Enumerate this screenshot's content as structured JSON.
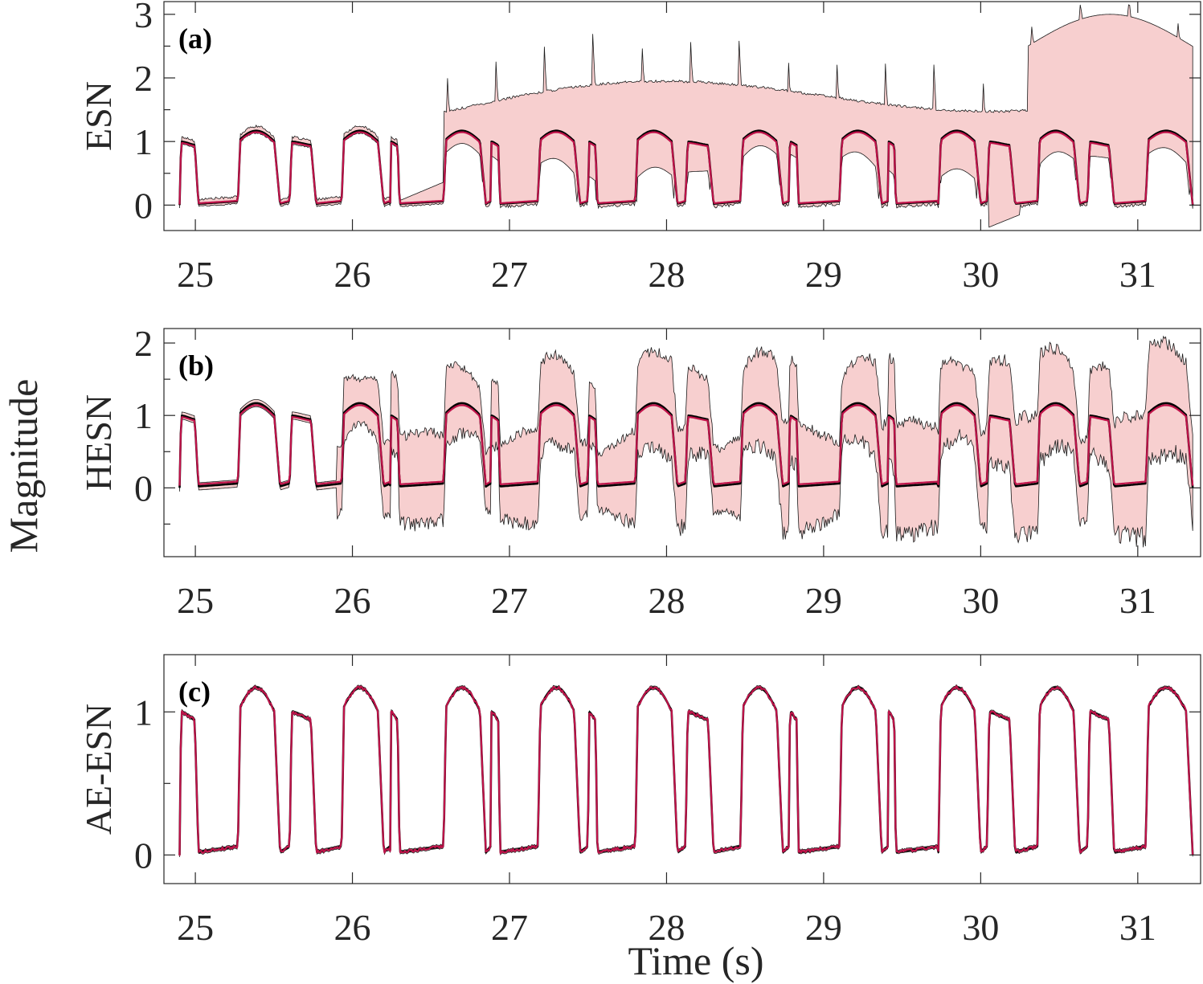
{
  "figure": {
    "xlabel": "Time (s)",
    "ylabel": "Magnitude"
  },
  "colors": {
    "truth": "#000000",
    "prediction": "#c0134a",
    "band_fill": "#f7cfcf",
    "band_edge": "#1a1a1a"
  },
  "chart_data": [
    {
      "type": "line",
      "panel": "(a)",
      "ylabel": "ESN",
      "xlim": [
        24.8,
        31.4
      ],
      "ylim": [
        -0.4,
        3.2
      ],
      "xticks": [
        25,
        26,
        27,
        28,
        29,
        30,
        31
      ],
      "yticks": [
        0,
        1,
        2,
        3
      ],
      "grid": false,
      "series": [
        {
          "role": "truth",
          "description": "square-wave like signal between ~0 and ~1.15"
        },
        {
          "role": "prediction",
          "description": "closely tracks truth"
        },
        {
          "role": "uncertainty band",
          "upper_approx": "up to ~3.2 after t=26.6",
          "lower_approx": "down to ~-0.4 near t=30.1"
        }
      ]
    },
    {
      "type": "line",
      "panel": "(b)",
      "ylabel": "HESN",
      "xlim": [
        24.8,
        31.4
      ],
      "ylim": [
        -0.95,
        2.2
      ],
      "xticks": [
        25,
        26,
        27,
        28,
        29,
        30,
        31
      ],
      "yticks": [
        0,
        1,
        2
      ],
      "grid": false,
      "series": [
        {
          "role": "truth"
        },
        {
          "role": "prediction"
        },
        {
          "role": "uncertainty band",
          "upper_approx": "up to ~2.2",
          "lower_approx": "down to ~-0.95"
        }
      ]
    },
    {
      "type": "line",
      "panel": "(c)",
      "ylabel": "AE-ESN",
      "xlim": [
        24.8,
        31.4
      ],
      "ylim": [
        -0.2,
        1.4
      ],
      "xticks": [
        25,
        26,
        27,
        28,
        29,
        30,
        31
      ],
      "yticks": [
        0,
        1
      ],
      "grid": false,
      "series": [
        {
          "role": "truth"
        },
        {
          "role": "prediction"
        },
        {
          "role": "uncertainty band",
          "upper_approx": "very narrow",
          "lower_approx": "very narrow"
        }
      ]
    }
  ],
  "signal_segments": [
    {
      "kind": "short",
      "start": 24.9,
      "end": 25.02
    },
    {
      "kind": "gap",
      "start": 25.02,
      "end": 25.27
    },
    {
      "kind": "long",
      "start": 25.27,
      "end": 25.54
    },
    {
      "kind": "gap",
      "start": 25.54,
      "end": 25.6
    },
    {
      "kind": "short",
      "start": 25.6,
      "end": 25.77
    },
    {
      "kind": "gap",
      "start": 25.77,
      "end": 25.93
    },
    {
      "kind": "long",
      "start": 25.93,
      "end": 26.2
    },
    {
      "kind": "gap",
      "start": 26.2,
      "end": 26.24
    },
    {
      "kind": "short",
      "start": 26.24,
      "end": 26.3
    },
    {
      "kind": "gap",
      "start": 26.3,
      "end": 26.58
    },
    {
      "kind": "long",
      "start": 26.58,
      "end": 26.85
    },
    {
      "kind": "gap",
      "start": 26.85,
      "end": 26.88
    },
    {
      "kind": "short",
      "start": 26.88,
      "end": 26.94
    },
    {
      "kind": "gap",
      "start": 26.94,
      "end": 27.18
    },
    {
      "kind": "long",
      "start": 27.18,
      "end": 27.45
    },
    {
      "kind": "gap",
      "start": 27.45,
      "end": 27.5
    },
    {
      "kind": "short",
      "start": 27.5,
      "end": 27.56
    },
    {
      "kind": "gap",
      "start": 27.56,
      "end": 27.8
    },
    {
      "kind": "long",
      "start": 27.8,
      "end": 28.07
    },
    {
      "kind": "gap",
      "start": 28.07,
      "end": 28.12
    },
    {
      "kind": "short",
      "start": 28.12,
      "end": 28.3
    },
    {
      "kind": "gap",
      "start": 28.3,
      "end": 28.47
    },
    {
      "kind": "long",
      "start": 28.47,
      "end": 28.74
    },
    {
      "kind": "gap",
      "start": 28.74,
      "end": 28.78
    },
    {
      "kind": "short",
      "start": 28.78,
      "end": 28.84
    },
    {
      "kind": "gap",
      "start": 28.84,
      "end": 29.1
    },
    {
      "kind": "long",
      "start": 29.1,
      "end": 29.37
    },
    {
      "kind": "gap",
      "start": 29.37,
      "end": 29.41
    },
    {
      "kind": "short",
      "start": 29.41,
      "end": 29.46
    },
    {
      "kind": "gap",
      "start": 29.46,
      "end": 29.73
    },
    {
      "kind": "long",
      "start": 29.73,
      "end": 30.0
    },
    {
      "kind": "gap",
      "start": 30.0,
      "end": 30.04
    },
    {
      "kind": "short",
      "start": 30.04,
      "end": 30.22
    },
    {
      "kind": "gap",
      "start": 30.22,
      "end": 30.36
    },
    {
      "kind": "long",
      "start": 30.36,
      "end": 30.63
    },
    {
      "kind": "gap",
      "start": 30.63,
      "end": 30.68
    },
    {
      "kind": "short",
      "start": 30.68,
      "end": 30.85
    },
    {
      "kind": "gap",
      "start": 30.85,
      "end": 31.05
    },
    {
      "kind": "long",
      "start": 31.05,
      "end": 31.35
    }
  ]
}
